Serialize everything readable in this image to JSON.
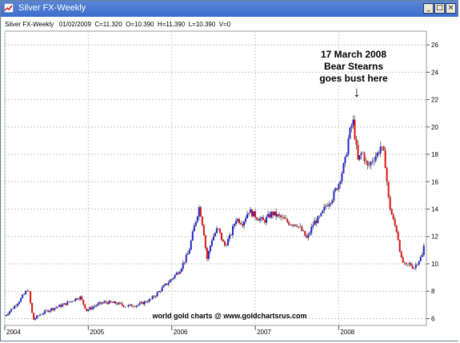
{
  "window": {
    "title": "Silver FX-Weekly",
    "min_glyph": "_",
    "max_glyph": "□",
    "close_glyph": "×"
  },
  "info_line": "Silver FX-Weekly   01/02/2009  C=11.320  O=10.390  H=11.390  L=10.390  V=0",
  "annotation": {
    "line1": "17 March 2008",
    "line2": "Bear Stearns",
    "line3": "goes bust here",
    "arrow": "↓"
  },
  "credit": "world gold charts @ www.goldchartsrus.com",
  "colors": {
    "up": "#2222cc",
    "down": "#dd1111",
    "wick": "#777777",
    "grid": "#cccccc",
    "titlebar": "#3c6ccc"
  },
  "chart_data": {
    "type": "candlestick",
    "title": "Silver FX-Weekly",
    "x_tick_labels": [
      "2004",
      "2005",
      "2006",
      "2007",
      "2008"
    ],
    "y_tick_labels": [
      "6",
      "8",
      "10",
      "12",
      "14",
      "16",
      "18",
      "20",
      "22",
      "24",
      "26"
    ],
    "ylim": [
      5.5,
      27
    ],
    "xlim": [
      2004.0,
      2009.05
    ],
    "y_axis_side": "right",
    "grid": true,
    "series": [
      {
        "values": [
          [
            2004.0,
            6.2
          ],
          [
            2004.1,
            6.8
          ],
          [
            2004.2,
            7.5
          ],
          [
            2004.28,
            8.2
          ],
          [
            2004.3,
            7.4
          ],
          [
            2004.34,
            5.9
          ],
          [
            2004.42,
            6.3
          ],
          [
            2004.52,
            6.6
          ],
          [
            2004.6,
            6.8
          ],
          [
            2004.7,
            7.0
          ],
          [
            2004.8,
            7.3
          ],
          [
            2004.9,
            7.6
          ],
          [
            2004.98,
            6.6
          ],
          [
            2005.1,
            7.0
          ],
          [
            2005.2,
            7.2
          ],
          [
            2005.35,
            7.1
          ],
          [
            2005.45,
            6.9
          ],
          [
            2005.6,
            7.0
          ],
          [
            2005.75,
            7.4
          ],
          [
            2005.9,
            8.3
          ],
          [
            2006.0,
            8.9
          ],
          [
            2006.1,
            9.6
          ],
          [
            2006.2,
            10.8
          ],
          [
            2006.28,
            13.0
          ],
          [
            2006.33,
            14.2
          ],
          [
            2006.38,
            12.5
          ],
          [
            2006.42,
            10.3
          ],
          [
            2006.48,
            11.8
          ],
          [
            2006.55,
            12.6
          ],
          [
            2006.63,
            11.3
          ],
          [
            2006.7,
            12.0
          ],
          [
            2006.77,
            13.3
          ],
          [
            2006.85,
            13.0
          ],
          [
            2006.92,
            13.9
          ],
          [
            2007.0,
            13.5
          ],
          [
            2007.1,
            13.1
          ],
          [
            2007.2,
            13.7
          ],
          [
            2007.3,
            13.4
          ],
          [
            2007.4,
            13.0
          ],
          [
            2007.5,
            12.9
          ],
          [
            2007.58,
            12.2
          ],
          [
            2007.62,
            11.8
          ],
          [
            2007.7,
            13.0
          ],
          [
            2007.78,
            13.4
          ],
          [
            2007.85,
            14.3
          ],
          [
            2007.92,
            14.8
          ],
          [
            2008.0,
            15.9
          ],
          [
            2008.08,
            17.6
          ],
          [
            2008.12,
            19.3
          ],
          [
            2008.17,
            20.5
          ],
          [
            2008.2,
            19.0
          ],
          [
            2008.23,
            17.5
          ],
          [
            2008.28,
            18.2
          ],
          [
            2008.35,
            17.0
          ],
          [
            2008.4,
            17.6
          ],
          [
            2008.47,
            18.1
          ],
          [
            2008.5,
            18.6
          ],
          [
            2008.55,
            17.8
          ],
          [
            2008.6,
            14.5
          ],
          [
            2008.65,
            13.2
          ],
          [
            2008.7,
            12.3
          ],
          [
            2008.75,
            10.3
          ],
          [
            2008.8,
            9.8
          ],
          [
            2008.85,
            10.0
          ],
          [
            2008.9,
            9.7
          ],
          [
            2008.95,
            10.2
          ],
          [
            2009.0,
            10.6
          ],
          [
            2009.02,
            11.3
          ]
        ]
      }
    ]
  }
}
